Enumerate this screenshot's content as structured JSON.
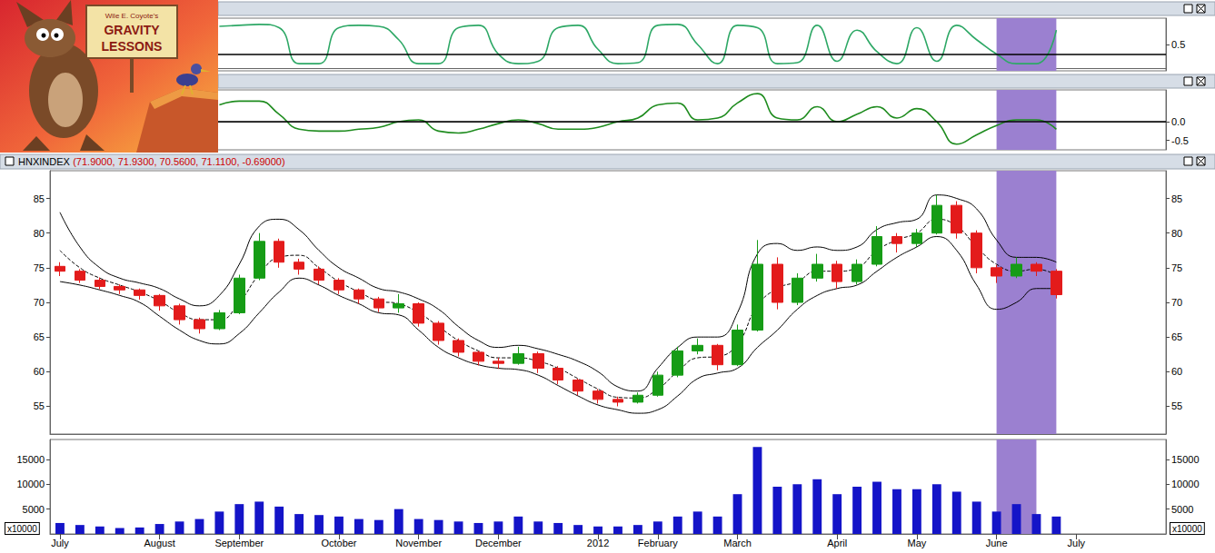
{
  "chart_data": [
    {
      "type": "line",
      "categories": [
        "July",
        null,
        null,
        null,
        null,
        "August",
        null,
        null,
        null,
        "September",
        null,
        null,
        null,
        null,
        "October",
        null,
        null,
        null,
        "November",
        null,
        null,
        null,
        "December",
        null,
        null,
        null,
        null,
        "2012",
        null,
        null,
        "February",
        null,
        null,
        null,
        "March",
        null,
        null,
        null,
        null,
        "April",
        null,
        null,
        null,
        "May",
        null,
        null,
        null,
        "June",
        null,
        null,
        null,
        "July",
        null,
        null,
        null,
        null
      ],
      "values": [
        null,
        null,
        null,
        null,
        null,
        null,
        null,
        null,
        0.88,
        0.9,
        0.92,
        0.85,
        0.1,
        0.1,
        0.85,
        0.9,
        0.88,
        0.6,
        0.1,
        0.1,
        0.85,
        0.9,
        0.3,
        0.1,
        0.15,
        0.85,
        0.9,
        0.4,
        0.1,
        0.12,
        0.9,
        0.92,
        0.5,
        0.1,
        0.9,
        0.85,
        0.1,
        0.12,
        0.9,
        0.15,
        0.8,
        0.35,
        0.1,
        0.85,
        0.15,
        0.9,
        0.6,
        0.3,
        0.1,
        0.1,
        0.8,
        null,
        null,
        null,
        null,
        null
      ],
      "color": "#2ea866",
      "ylim": [
        -0.05,
        1.05
      ],
      "yticks": [
        0.5
      ],
      "reference_line": 0.3,
      "grid": false,
      "tick_labels": "y",
      "shaded": {
        "from": "June",
        "color": "#9b80d0"
      }
    },
    {
      "type": "line",
      "categories": [
        "July",
        null,
        null,
        null,
        null,
        "August",
        null,
        null,
        null,
        "September",
        null,
        null,
        null,
        null,
        "October",
        null,
        null,
        null,
        "November",
        null,
        null,
        null,
        "December",
        null,
        null,
        null,
        null,
        "2012",
        null,
        null,
        "February",
        null,
        null,
        null,
        "March",
        null,
        null,
        null,
        null,
        "April",
        null,
        null,
        null,
        "May",
        null,
        null,
        null,
        "June",
        null,
        null,
        null,
        "July",
        null,
        null,
        null,
        null
      ],
      "values": [
        null,
        null,
        null,
        null,
        null,
        null,
        null,
        null,
        0.45,
        0.55,
        0.55,
        0.2,
        -0.2,
        -0.25,
        -0.25,
        -0.2,
        -0.15,
        0.0,
        0.05,
        -0.25,
        -0.3,
        -0.2,
        -0.05,
        0.05,
        -0.05,
        -0.2,
        -0.2,
        -0.15,
        0.0,
        0.1,
        0.45,
        0.5,
        0.05,
        0.1,
        0.5,
        0.75,
        0.1,
        0.05,
        0.4,
        0.0,
        0.2,
        0.4,
        0.1,
        0.35,
        0.0,
        -0.6,
        -0.35,
        -0.1,
        0.05,
        0.05,
        -0.2,
        null,
        null,
        null,
        null,
        null
      ],
      "color": "#1f8c1f",
      "ylim": [
        -0.75,
        0.85
      ],
      "yticks": [
        {
          "value": 0,
          "label": "0.0"
        },
        -0.5
      ],
      "reference_line": 0,
      "grid": false,
      "tick_labels": "y",
      "shaded": {
        "from": "June",
        "color": "#9b80d0"
      }
    },
    {
      "type": "candlestick",
      "title": "HNXINDEX",
      "subtitle": "(71.9000, 71.9300, 70.5600, 71.1100, -0.69000)",
      "categories": [
        "July",
        null,
        null,
        null,
        null,
        "August",
        null,
        null,
        null,
        "September",
        null,
        null,
        null,
        null,
        "October",
        null,
        null,
        null,
        "November",
        null,
        null,
        null,
        "December",
        null,
        null,
        null,
        null,
        "2012",
        null,
        null,
        "February",
        null,
        null,
        null,
        "March",
        null,
        null,
        null,
        null,
        "April",
        null,
        null,
        null,
        "May",
        null,
        null,
        null,
        "June",
        null,
        null,
        null,
        "July",
        null,
        null,
        null,
        null
      ],
      "open": [
        75.2,
        74.5,
        73.2,
        72.3,
        71.8,
        71.0,
        69.5,
        67.5,
        66.2,
        68.5,
        73.5,
        78.8,
        75.8,
        74.8,
        73.2,
        71.8,
        70.5,
        69.2,
        69.8,
        67.0,
        64.5,
        62.8,
        61.5,
        61.2,
        62.6,
        60.5,
        58.8,
        57.2,
        56.0,
        55.6,
        56.6,
        59.5,
        63.0,
        63.8,
        61.0,
        66.0,
        75.5,
        70.0,
        73.5,
        75.5,
        73.0,
        75.5,
        79.5,
        78.5,
        80.0,
        84.0,
        80.0,
        75.0,
        73.8,
        75.5,
        74.5,
        null,
        null,
        null,
        null,
        null
      ],
      "close": [
        74.5,
        73.2,
        72.3,
        71.8,
        71.0,
        69.5,
        67.5,
        66.2,
        68.5,
        73.5,
        78.8,
        75.8,
        74.8,
        73.2,
        71.8,
        70.5,
        69.2,
        69.8,
        67.0,
        64.5,
        62.8,
        61.5,
        61.2,
        62.6,
        60.5,
        58.8,
        57.2,
        56.0,
        55.6,
        56.6,
        59.5,
        63.0,
        63.8,
        61.0,
        66.0,
        75.5,
        70.0,
        73.5,
        75.5,
        73.0,
        75.5,
        79.5,
        78.5,
        80.0,
        84.0,
        80.0,
        75.0,
        73.8,
        75.5,
        74.5,
        71.11,
        null,
        null,
        null,
        null,
        null
      ],
      "low": [
        73.8,
        72.8,
        71.9,
        71.2,
        70.4,
        68.8,
        66.8,
        65.5,
        66.0,
        68.3,
        73.2,
        75.0,
        74.0,
        72.6,
        71.2,
        69.8,
        68.6,
        68.5,
        66.5,
        63.9,
        62.2,
        60.9,
        60.4,
        61.0,
        59.8,
        58.2,
        56.6,
        55.4,
        55.0,
        55.4,
        56.4,
        59.2,
        62.5,
        60.2,
        60.8,
        65.8,
        69.0,
        69.6,
        73.0,
        72.0,
        72.6,
        75.2,
        77.2,
        78.0,
        79.8,
        79.2,
        74.2,
        72.8,
        73.5,
        73.8,
        70.56,
        null,
        null,
        null,
        null,
        null
      ],
      "high": [
        75.8,
        74.8,
        73.6,
        72.6,
        72.0,
        71.2,
        69.8,
        67.8,
        68.9,
        74.0,
        80.0,
        79.2,
        76.3,
        75.2,
        73.5,
        72.0,
        70.8,
        71.2,
        70.0,
        67.3,
        64.8,
        63.0,
        62.0,
        63.6,
        62.9,
        60.8,
        59.0,
        57.5,
        56.4,
        57.0,
        60.0,
        63.6,
        64.8,
        64.0,
        66.8,
        79.0,
        76.5,
        74.2,
        77.0,
        76.0,
        76.2,
        81.0,
        80.0,
        80.6,
        85.5,
        84.6,
        80.4,
        75.4,
        76.5,
        75.8,
        74.8,
        null,
        null,
        null,
        null,
        null
      ],
      "colors": {
        "up": "#169c16",
        "down": "#e31b1b"
      },
      "bands": {
        "upper": [
          83.0,
          78.0,
          75.0,
          73.5,
          72.8,
          72.0,
          70.5,
          69.5,
          71.0,
          75.5,
          81.0,
          82.0,
          80.5,
          77.5,
          75.0,
          73.5,
          72.0,
          71.5,
          70.5,
          69.0,
          66.5,
          64.5,
          63.5,
          63.8,
          63.3,
          62.5,
          61.5,
          60.0,
          57.8,
          57.2,
          60.5,
          63.5,
          65.0,
          65.0,
          68.5,
          77.0,
          78.5,
          77.5,
          78.0,
          77.5,
          78.0,
          80.5,
          81.5,
          82.0,
          85.5,
          85.0,
          83.5,
          79.0,
          76.5,
          76.5,
          75.8,
          null,
          null,
          null,
          null,
          null
        ],
        "middle": [
          77.5,
          75.0,
          73.5,
          72.5,
          71.5,
          70.2,
          68.5,
          67.5,
          67.5,
          70.0,
          74.0,
          76.5,
          76.8,
          75.0,
          73.0,
          71.5,
          70.2,
          69.8,
          68.5,
          66.5,
          64.5,
          63.0,
          62.0,
          62.0,
          61.5,
          60.5,
          59.0,
          57.5,
          56.3,
          56.2,
          57.5,
          60.0,
          62.0,
          62.2,
          64.0,
          69.5,
          72.0,
          73.0,
          74.5,
          74.5,
          75.0,
          77.5,
          79.0,
          80.0,
          82.0,
          81.0,
          78.0,
          75.5,
          74.5,
          74.8,
          73.9,
          null,
          null,
          null,
          null,
          null
        ],
        "lower": [
          73.0,
          72.5,
          71.8,
          71.0,
          70.0,
          68.0,
          66.0,
          64.5,
          64.0,
          65.5,
          68.5,
          71.5,
          73.5,
          72.5,
          71.0,
          69.8,
          68.5,
          68.2,
          66.0,
          63.5,
          62.0,
          61.0,
          60.5,
          60.3,
          59.5,
          58.0,
          56.5,
          55.2,
          54.5,
          54.0,
          54.5,
          56.5,
          59.0,
          59.8,
          60.5,
          63.5,
          66.0,
          69.0,
          71.0,
          72.0,
          72.5,
          74.5,
          76.5,
          78.0,
          79.5,
          77.5,
          72.5,
          69.0,
          70.0,
          72.0,
          72.0,
          null,
          null,
          null,
          null,
          null
        ],
        "color": "#000000"
      },
      "last_label": {
        "value": 71.11,
        "label": "71.1100"
      },
      "ylim": [
        51,
        89
      ],
      "yticks": [
        55,
        60,
        65,
        70,
        75,
        80,
        85
      ],
      "grid": false,
      "tick_labels": "y",
      "shaded": {
        "from": "June",
        "color": "#9b80d0"
      }
    },
    {
      "type": "bar",
      "categories": [
        "July",
        null,
        null,
        null,
        null,
        "August",
        null,
        null,
        null,
        "September",
        null,
        null,
        null,
        null,
        "October",
        null,
        null,
        null,
        "November",
        null,
        null,
        null,
        "December",
        null,
        null,
        null,
        null,
        "2012",
        null,
        null,
        "February",
        null,
        null,
        null,
        "March",
        null,
        null,
        null,
        null,
        "April",
        null,
        null,
        null,
        "May",
        null,
        null,
        null,
        "June",
        null,
        null,
        null,
        "July",
        null,
        null,
        null,
        null
      ],
      "values": [
        2200,
        1800,
        1500,
        1200,
        1300,
        2000,
        2500,
        3000,
        4500,
        6000,
        6500,
        5500,
        4000,
        3800,
        3500,
        3000,
        2800,
        5000,
        3000,
        2800,
        2500,
        2200,
        2500,
        3500,
        2500,
        2200,
        1800,
        1500,
        1500,
        1800,
        2500,
        3500,
        4500,
        3500,
        8000,
        17500,
        9500,
        10000,
        11000,
        8000,
        9500,
        10500,
        9000,
        9000,
        10000,
        8500,
        6500,
        4500,
        6000,
        4000,
        3500,
        null,
        null,
        null,
        null,
        null
      ],
      "color": "#1414c8",
      "unit_label": "x10000",
      "ylim": [
        0,
        19000
      ],
      "yticks": [
        5000,
        10000,
        15000
      ],
      "grid": false,
      "shaded": {
        "from": "June",
        "color": "#9b80d0"
      }
    }
  ],
  "image": {
    "sign": [
      "Wile E. Coyote's",
      "GRAVITY",
      "LESSONS"
    ]
  }
}
